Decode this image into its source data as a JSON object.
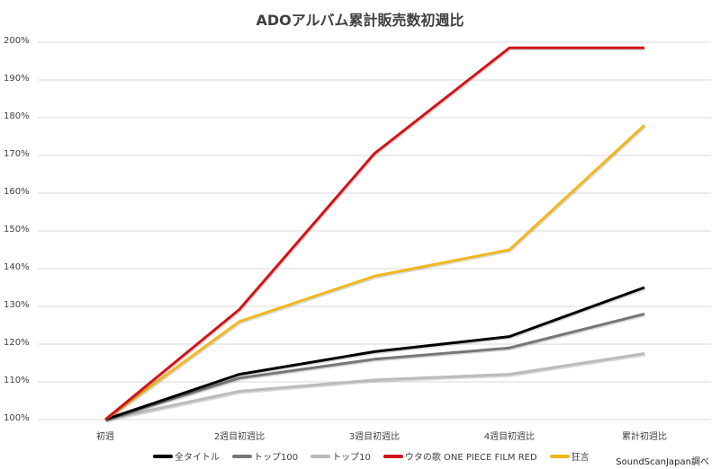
{
  "chart_data": {
    "type": "line",
    "title": "ADOアルバム累計販売数初週比",
    "xlabel": "",
    "ylabel": "",
    "categories": [
      "初週",
      "2週目初週比",
      "3週目初週比",
      "4週目初週比",
      "累計初週比"
    ],
    "y_ticks": [
      "200%",
      "190%",
      "180%",
      "170%",
      "160%",
      "150%",
      "140%",
      "130%",
      "120%",
      "110%",
      "100%"
    ],
    "ylim": [
      100,
      200
    ],
    "grid": true,
    "legend_position": "bottom",
    "series": [
      {
        "name": "全タイトル",
        "color": "#000000",
        "values": [
          100,
          112,
          118,
          122,
          135
        ]
      },
      {
        "name": "トップ100",
        "color": "#777777",
        "values": [
          100,
          111,
          116,
          119,
          128
        ]
      },
      {
        "name": "トップ10",
        "color": "#bbbbbb",
        "values": [
          100,
          107.5,
          110.5,
          112,
          117.5
        ]
      },
      {
        "name": "ウタの歌 ONE PIECE FILM RED",
        "color": "#d0141b",
        "values": [
          100,
          129.2,
          170.5,
          198.5,
          198.5
        ]
      },
      {
        "name": "狂言",
        "color": "#f0b81c",
        "values": [
          100,
          126,
          138,
          145,
          178
        ]
      }
    ]
  },
  "source_note": "SoundScanJapan調べ"
}
